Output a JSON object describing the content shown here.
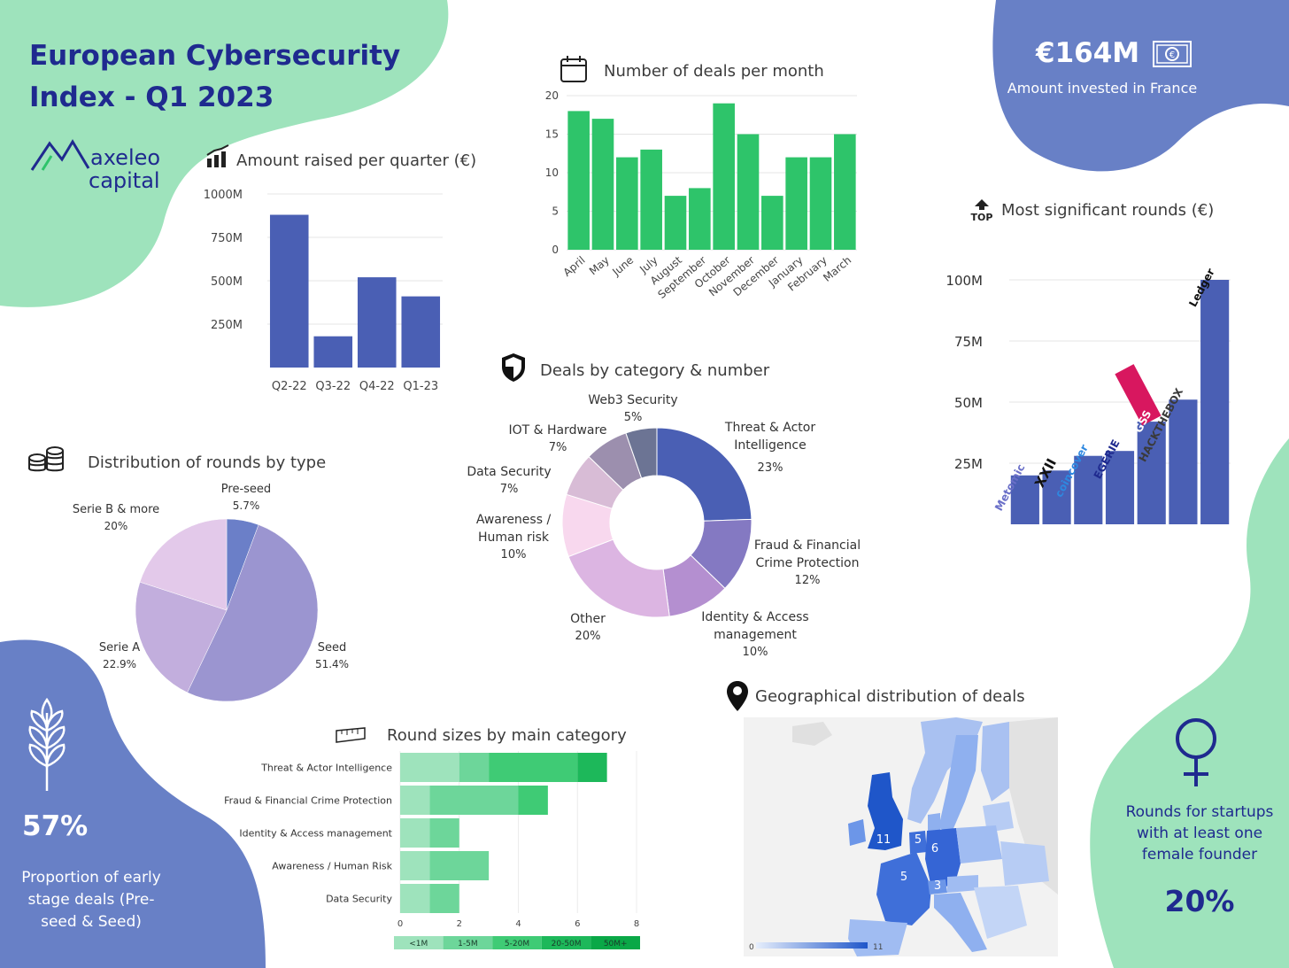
{
  "header": {
    "title_line1": "European Cybersecurity",
    "title_line2": "Index - Q1 2023",
    "logo_line1": "axeleo",
    "logo_line2": "capital"
  },
  "kpi_france": {
    "value": "€164M",
    "label": "Amount invested in France"
  },
  "kpi_early": {
    "value": "57%",
    "label_lines": [
      "Proportion of early",
      "stage deals (Pre-",
      "seed & Seed)"
    ]
  },
  "kpi_female": {
    "label_lines": [
      "Rounds for startups",
      "with at least one",
      "female founder"
    ],
    "value": "20%"
  },
  "colors": {
    "green_blob": "#9ee3bc",
    "blue_blob": "#6880c6",
    "bar_blue": "#4a5fb4",
    "bar_green": "#2ec46a",
    "title_navy": "#1f2a8f"
  },
  "chart_data": [
    {
      "id": "quarterly",
      "type": "bar",
      "title": "Amount raised per quarter (€)",
      "categories": [
        "Q2-22",
        "Q3-22",
        "Q4-22",
        "Q1-23"
      ],
      "values": [
        880,
        180,
        520,
        410
      ],
      "yticks": [
        "1000M",
        "750M",
        "500M",
        "250M"
      ],
      "ylim": [
        0,
        1000
      ]
    },
    {
      "id": "monthly",
      "type": "bar",
      "title": "Number of deals per month",
      "categories": [
        "April",
        "May",
        "June",
        "July",
        "August",
        "September",
        "October",
        "November",
        "December",
        "January",
        "February",
        "March"
      ],
      "values": [
        18,
        17,
        12,
        13,
        7,
        8,
        19,
        15,
        7,
        12,
        12,
        15
      ],
      "yticks": [
        "20",
        "15",
        "10",
        "5",
        "0"
      ],
      "ylim": [
        0,
        20
      ]
    },
    {
      "id": "rounds",
      "type": "bar",
      "title": "Most significant rounds (€)",
      "top_badge": "TOP",
      "categories": [
        "Metomic",
        "XXII",
        "coincover",
        "EGERIE",
        "GSS",
        "HACKTHEBOX",
        "Ledger"
      ],
      "values": [
        20,
        22,
        28,
        30,
        42,
        51,
        100
      ],
      "yticks": [
        "100M",
        "75M",
        "50M",
        "25M"
      ],
      "ylim": [
        0,
        100
      ]
    },
    {
      "id": "category_donut",
      "type": "pie",
      "title": "Deals by category & number",
      "slices": [
        {
          "name": "Threat & Actor Intelligence",
          "lines": [
            "Threat & Actor",
            "Intelligence"
          ],
          "pct_label": "23%",
          "value": 23,
          "color": "#4a5fb4"
        },
        {
          "name": "Fraud & Financial Crime Protection",
          "lines": [
            "Fraud & Financial",
            "Crime Protection"
          ],
          "pct_label": "12%",
          "value": 12,
          "color": "#8479c2"
        },
        {
          "name": "Identity & Access management",
          "lines": [
            "Identity & Access",
            "management"
          ],
          "pct_label": "10%",
          "value": 10,
          "color": "#b48fd0"
        },
        {
          "name": "Other",
          "lines": [
            "Other"
          ],
          "pct_label": "20%",
          "value": 20,
          "color": "#dcb5e2"
        },
        {
          "name": "Awareness / Human risk",
          "lines": [
            "Awareness /",
            "Human risk"
          ],
          "pct_label": "10%",
          "value": 10,
          "color": "#f8d8ee"
        },
        {
          "name": "Data Security",
          "lines": [
            "Data Security"
          ],
          "pct_label": "7%",
          "value": 7,
          "color": "#d8bcd6"
        },
        {
          "name": "IOT & Hardware",
          "lines": [
            "IOT & Hardware"
          ],
          "pct_label": "7%",
          "value": 7,
          "color": "#9c8fae"
        },
        {
          "name": "Web3 Security",
          "lines": [
            "Web3 Security"
          ],
          "pct_label": "5%",
          "value": 5,
          "color": "#6c7494"
        }
      ]
    },
    {
      "id": "type_pie",
      "type": "pie",
      "title": "Distribution of rounds by type",
      "slices": [
        {
          "name": "Pre-seed",
          "pct_label": "5.7%",
          "value": 5.7,
          "color": "#6b7fc8"
        },
        {
          "name": "Seed",
          "pct_label": "51.4%",
          "value": 51.4,
          "color": "#9b95d0"
        },
        {
          "name": "Serie A",
          "pct_label": "22.9%",
          "value": 22.9,
          "color": "#c2aedd"
        },
        {
          "name": "Serie B & more",
          "pct_label": "20%",
          "value": 20,
          "color": "#e3c9ea"
        }
      ]
    },
    {
      "id": "round_sizes",
      "type": "bar",
      "orientation": "horizontal",
      "stacked": true,
      "title": "Round sizes by main category",
      "categories": [
        "Threat & Actor Intelligence",
        "Fraud & Financial Crime Protection",
        "Identity & Access management",
        "Awareness / Human Risk",
        "Data Security"
      ],
      "series": [
        {
          "name": "<1M",
          "values": [
            2,
            1,
            1,
            1,
            1
          ],
          "color": "#9ee3bc"
        },
        {
          "name": "1-5M",
          "values": [
            1,
            3,
            1,
            2,
            1
          ],
          "color": "#6dd69a"
        },
        {
          "name": "5-20M",
          "values": [
            3,
            1,
            0,
            0,
            0
          ],
          "color": "#3fcb75"
        },
        {
          "name": "20-50M",
          "values": [
            1,
            0,
            0,
            0,
            0
          ],
          "color": "#1db85a"
        },
        {
          "name": "50M+",
          "values": [
            0,
            0,
            0,
            0,
            0
          ],
          "color": "#0aa847"
        }
      ],
      "xticks": [
        "0",
        "2",
        "4",
        "6",
        "8"
      ],
      "xlim": [
        0,
        8
      ]
    },
    {
      "id": "geo_map",
      "type": "heatmap",
      "title": "Geographical distribution of deals",
      "regions": [
        {
          "name": "United Kingdom",
          "value": 11
        },
        {
          "name": "Netherlands",
          "value": 5
        },
        {
          "name": "Germany",
          "value": 6
        },
        {
          "name": "France",
          "value": 5
        },
        {
          "name": "Switzerland",
          "value": 3
        }
      ],
      "scale_min": "0",
      "scale_max": "11"
    }
  ]
}
